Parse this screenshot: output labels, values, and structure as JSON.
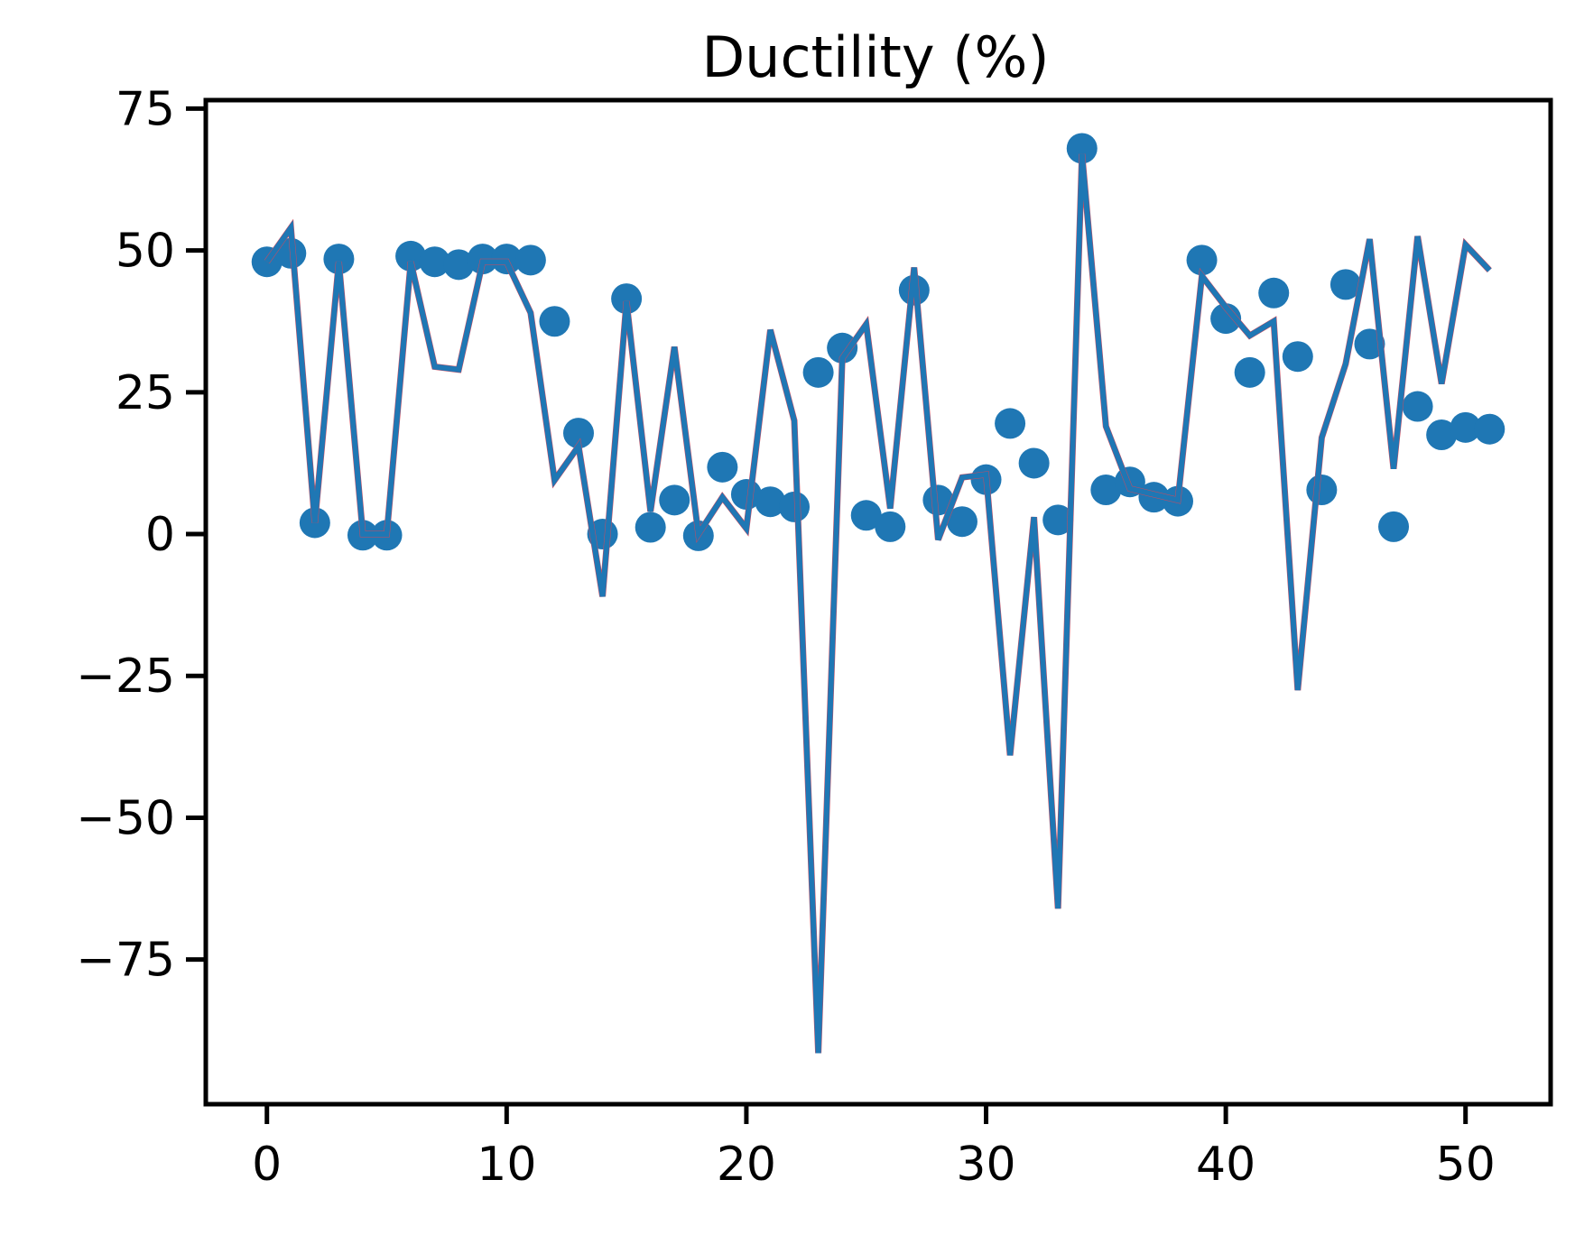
{
  "chart_data": {
    "type": "scatter",
    "title": "Ductility (%)",
    "xlabel": "",
    "ylabel": "",
    "xlim": [
      -2.55,
      53.55
    ],
    "ylim": [
      -100.5,
      76.5
    ],
    "xticks": [
      0,
      10,
      20,
      30,
      40,
      50
    ],
    "yticks": [
      75,
      50,
      25,
      0,
      -25,
      -50,
      -75
    ],
    "ytick_labels": [
      "75",
      "50",
      "25",
      "0",
      "−25",
      "−50",
      "−75"
    ],
    "grid": false,
    "legend": "none",
    "series": [
      {
        "kind": "points",
        "color": "#1f77b4",
        "x": [
          0,
          1,
          2,
          3,
          4,
          5,
          6,
          7,
          8,
          9,
          10,
          11,
          12,
          13,
          14,
          15,
          16,
          17,
          18,
          19,
          20,
          21,
          22,
          23,
          24,
          25,
          26,
          27,
          28,
          29,
          30,
          31,
          32,
          33,
          34,
          35,
          36,
          37,
          38,
          39,
          40,
          41,
          42,
          43,
          44,
          45,
          46,
          47,
          48,
          49,
          50,
          51
        ],
        "y": [
          48,
          49.5,
          2,
          48.5,
          -0.2,
          -0.2,
          49,
          48,
          47.5,
          48.5,
          48.5,
          48.3,
          37.5,
          17.8,
          0,
          41.5,
          1.2,
          6,
          -0.3,
          11.8,
          7,
          5.7,
          4.8,
          28.5,
          32.8,
          3.3,
          1.3,
          43,
          6,
          2.2,
          9.6,
          19.5,
          12.5,
          2.5,
          68,
          7.8,
          9.2,
          6.5,
          5.8,
          48.3,
          38,
          28.5,
          42.5,
          31.3,
          7.8,
          44,
          33.5,
          1.3,
          22.5,
          17.5,
          18.8,
          18.5
        ]
      },
      {
        "kind": "line",
        "color": "#d1495b",
        "x": [
          0,
          1,
          2,
          3,
          4,
          5,
          6,
          7,
          8,
          9,
          10,
          11,
          12,
          13,
          14,
          15,
          16,
          17,
          18,
          19,
          20,
          21,
          22,
          23,
          24,
          25,
          26,
          27,
          28,
          29,
          30,
          31,
          32,
          33,
          34,
          35,
          36,
          37,
          38,
          39,
          40,
          41,
          42,
          43,
          44,
          45,
          46,
          47,
          48,
          49,
          50,
          51
        ],
        "y": [
          48,
          54,
          2,
          48,
          0,
          0,
          48,
          29.5,
          29,
          48,
          48,
          39,
          9.5,
          15.5,
          -11,
          41,
          4,
          33,
          0,
          6.5,
          1,
          36,
          20,
          -91.5,
          31,
          37,
          4.5,
          47,
          -1,
          10,
          10.5,
          -39,
          3,
          -66,
          67,
          19,
          8,
          7,
          6,
          45.5,
          40,
          35,
          37.5,
          -27.5,
          17,
          30,
          52,
          11.5,
          52.5,
          26.5,
          51,
          46.5
        ]
      },
      {
        "kind": "line",
        "color": "#1f77b4",
        "x": [
          0,
          1,
          2,
          3,
          4,
          5,
          6,
          7,
          8,
          9,
          10,
          11,
          12,
          13,
          14,
          15,
          16,
          17,
          18,
          19,
          20,
          21,
          22,
          23,
          24,
          25,
          26,
          27,
          28,
          29,
          30,
          31,
          32,
          33,
          34,
          35,
          36,
          37,
          38,
          39,
          40,
          41,
          42,
          43,
          44,
          45,
          46,
          47,
          48,
          49,
          50,
          51
        ],
        "y": [
          48,
          54,
          2,
          48,
          0,
          0,
          48,
          29.5,
          29,
          48,
          48,
          39,
          9.5,
          15.5,
          -11,
          41,
          4,
          33,
          0,
          6.5,
          1,
          36,
          20,
          -91.5,
          31,
          37,
          4.5,
          47,
          -1,
          10,
          10.5,
          -39,
          3,
          -66,
          67,
          19,
          8,
          7,
          6,
          45.5,
          40,
          35,
          37.5,
          -27.5,
          17,
          30,
          52,
          11.5,
          52.5,
          26.5,
          51,
          46.5
        ]
      }
    ]
  }
}
